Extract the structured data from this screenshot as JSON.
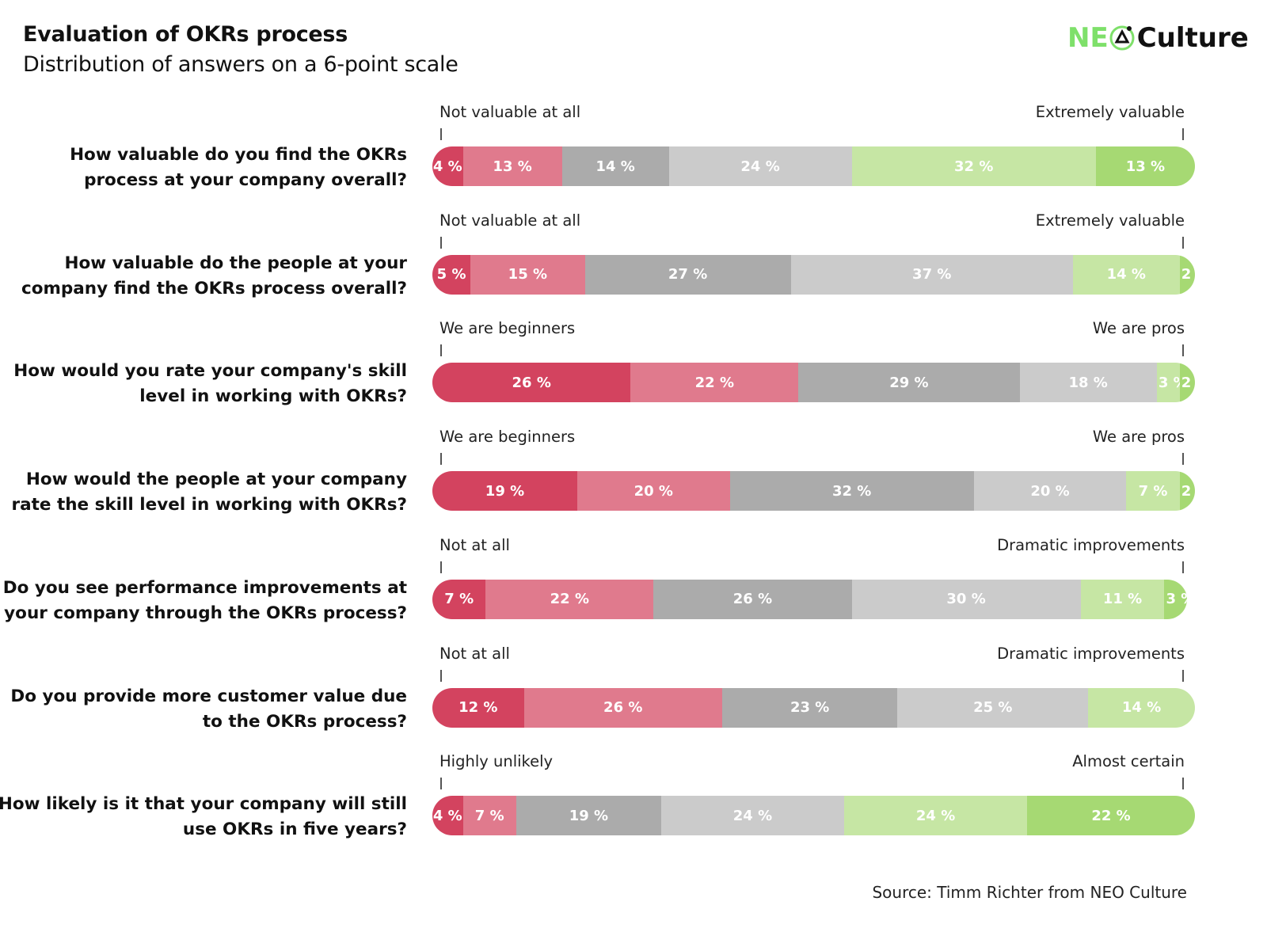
{
  "chart_data": {
    "type": "bar",
    "orientation": "horizontal-stacked",
    "title": "Evaluation of OKRs process",
    "subtitle": "Distribution of answers on a 6-point scale",
    "scale_points": 6,
    "colors": [
      "#d3435f",
      "#e07a8d",
      "#ababab",
      "#cbcbcb",
      "#c6e6a4",
      "#a6d973"
    ],
    "questions": [
      {
        "question": "How valuable do you find the OKRs process at your company overall?",
        "low": "Not valuable at all",
        "high": "Extremely valuable",
        "values": [
          4,
          13,
          14,
          24,
          32,
          13
        ]
      },
      {
        "question": "How valuable do the people at your company find the OKRs process overall?",
        "low": "Not valuable at all",
        "high": "Extremely valuable",
        "values": [
          5,
          15,
          27,
          37,
          14,
          2
        ]
      },
      {
        "question": "How would you rate your company's skill level in working with OKRs?",
        "low": "We are beginners",
        "high": "We are pros",
        "values": [
          26,
          22,
          29,
          18,
          3,
          2
        ]
      },
      {
        "question": "How would the people at your company rate the skill level in working with OKRs?",
        "low": "We are beginners",
        "high": "We are pros",
        "values": [
          19,
          20,
          32,
          20,
          7,
          2
        ]
      },
      {
        "question": "Do you see performance improvements at your company through the OKRs process?",
        "low": "Not at all",
        "high": "Dramatic improvements",
        "values": [
          7,
          22,
          26,
          30,
          11,
          3
        ]
      },
      {
        "question": "Do you provide more customer value due to the OKRs process?",
        "low": "Not at all",
        "high": "Dramatic improvements",
        "values": [
          12,
          26,
          23,
          25,
          14,
          0
        ]
      },
      {
        "question": "How likely is it that your company will still use OKRs in five years?",
        "low": "Highly unlikely",
        "high": "Almost certain",
        "values": [
          4,
          7,
          19,
          24,
          24,
          22
        ]
      }
    ],
    "unit": "%",
    "xlim": [
      0,
      100
    ]
  },
  "logo": {
    "part1": "NE",
    "part2": "Culture"
  },
  "source": "Source: Timm Richter from NEO Culture"
}
